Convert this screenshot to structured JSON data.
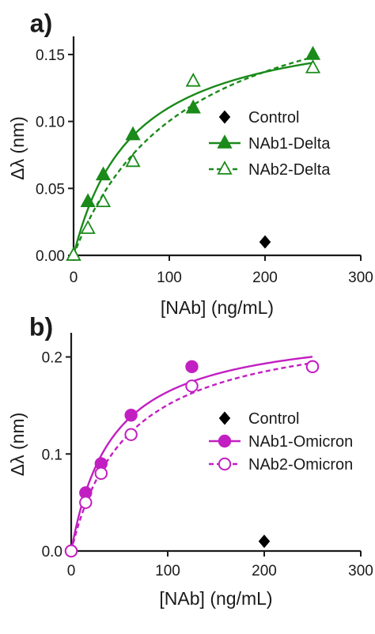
{
  "chart_data": [
    {
      "panel_label": "a)",
      "type": "scatter",
      "xlabel": "[NAb] (ng/mL)",
      "ylabel": "Δλ (nm)",
      "xlim": [
        0,
        300
      ],
      "ylim": [
        0,
        0.16
      ],
      "xticks": [
        "0",
        "100",
        "200",
        "300"
      ],
      "yticks": [
        "0.00",
        "0.05",
        "0.10",
        "0.15"
      ],
      "legend_position": "right",
      "series": [
        {
          "name": "Control",
          "marker": "diamond",
          "fill": "filled",
          "color": "#000000",
          "fit": "none",
          "points": [
            [
              200,
              0.01
            ]
          ]
        },
        {
          "name": "NAb1-Delta",
          "marker": "triangle",
          "fill": "filled",
          "color": "#1a8a1a",
          "fit": "solid",
          "points": [
            [
              0,
              0.0
            ],
            [
              15,
              0.04
            ],
            [
              31,
              0.06
            ],
            [
              62,
              0.09
            ],
            [
              125,
              0.11
            ],
            [
              250,
              0.15
            ]
          ]
        },
        {
          "name": "NAb2-Delta",
          "marker": "triangle",
          "fill": "open",
          "color": "#1a8a1a",
          "fit": "dashed",
          "points": [
            [
              0,
              0.0
            ],
            [
              15,
              0.02
            ],
            [
              31,
              0.04
            ],
            [
              62,
              0.07
            ],
            [
              125,
              0.13
            ],
            [
              250,
              0.14
            ]
          ]
        }
      ]
    },
    {
      "panel_label": "b)",
      "type": "scatter",
      "xlabel": "[NAb] (ng/mL)",
      "ylabel": "Δλ (nm)",
      "xlim": [
        0,
        300
      ],
      "ylim": [
        0,
        0.22
      ],
      "xticks": [
        "0",
        "100",
        "200",
        "300"
      ],
      "yticks": [
        "0.0",
        "0.1",
        "0.2"
      ],
      "legend_position": "right",
      "series": [
        {
          "name": "Control",
          "marker": "diamond",
          "fill": "filled",
          "color": "#000000",
          "fit": "none",
          "points": [
            [
              200,
              0.01
            ]
          ]
        },
        {
          "name": "NAb1-Omicron",
          "marker": "circle",
          "fill": "filled",
          "color": "#c21fc2",
          "fit": "solid",
          "points": [
            [
              0,
              0.0
            ],
            [
              15,
              0.06
            ],
            [
              31,
              0.09
            ],
            [
              62,
              0.14
            ],
            [
              125,
              0.19
            ],
            [
              250,
              0.19
            ]
          ]
        },
        {
          "name": "NAb2-Omicron",
          "marker": "circle",
          "fill": "open",
          "color": "#c21fc2",
          "fit": "dashed",
          "points": [
            [
              0,
              0.0
            ],
            [
              15,
              0.05
            ],
            [
              31,
              0.08
            ],
            [
              62,
              0.12
            ],
            [
              125,
              0.17
            ],
            [
              250,
              0.19
            ]
          ]
        }
      ]
    }
  ]
}
